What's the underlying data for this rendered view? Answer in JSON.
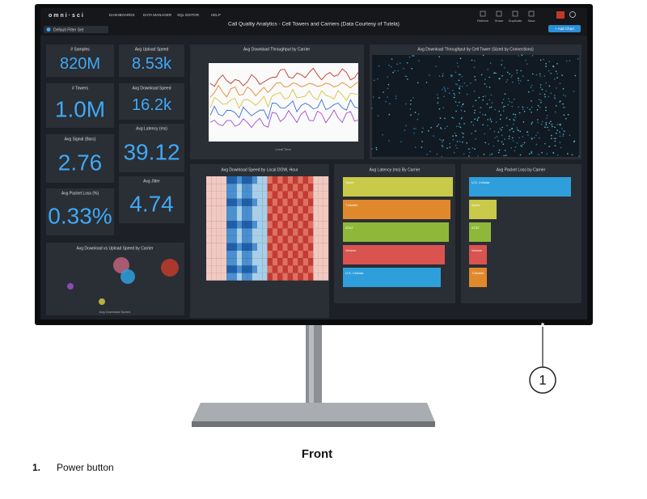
{
  "screen": {
    "logo": "omni·sci",
    "nav": [
      "DASHBOARDS",
      "DATA MANAGER",
      "SQL EDITOR",
      "HELP"
    ],
    "filter": "Default Filter Set",
    "dashboard_title": "Call Quality Analytics - Cell Towers and Carriers (Data Courtesy of Tutela)",
    "actions": [
      "Refresh",
      "Share",
      "Duplicate",
      "Save"
    ],
    "add_chart": "+ Add Chart",
    "kpis": [
      {
        "label": "# Samples",
        "value": "820M"
      },
      {
        "label": "# Towers",
        "value": "1.0M"
      },
      {
        "label": "Avg Signal (Bars)",
        "value": "2.76"
      },
      {
        "label": "Avg Packet Loss (%)",
        "value": "0.33%"
      },
      {
        "label": "Avg Upload Speed",
        "value": "8.53k"
      },
      {
        "label": "Avg Download Speed",
        "value": "16.2k"
      },
      {
        "label": "Avg Latency (ms)",
        "value": "39.12"
      },
      {
        "label": "Avg Jitter",
        "value": "4.74"
      }
    ],
    "line_chart_title": "Avg Download Throughput by Carrier",
    "line_chart_xlabel": "Local Time",
    "map_title": "Avg Download Throughput by Cell Tower (Sized by Connections)",
    "heatmap_title": "Avg Download Speed by Local DOW, Hour",
    "latency_title": "Avg Latency (ms) By Carrier",
    "latency_carriers": [
      "Sprint",
      "T-Mobile",
      "AT&T",
      "Verizon",
      "U.S. Cellular"
    ],
    "packet_loss_title": "Avg Packet Loss by Carrier",
    "packet_loss_carriers": [
      "U.S. Cellular",
      "Sprint",
      "AT&T",
      "Verizon",
      "T-Mobile"
    ],
    "scatter_title": "Avg Download vs Upload Speed by Carrier",
    "scatter_xlabel": "Avg Download Speed"
  },
  "callout": "1",
  "caption": "Front",
  "legend": [
    {
      "number": "1.",
      "label": "Power button"
    }
  ]
}
